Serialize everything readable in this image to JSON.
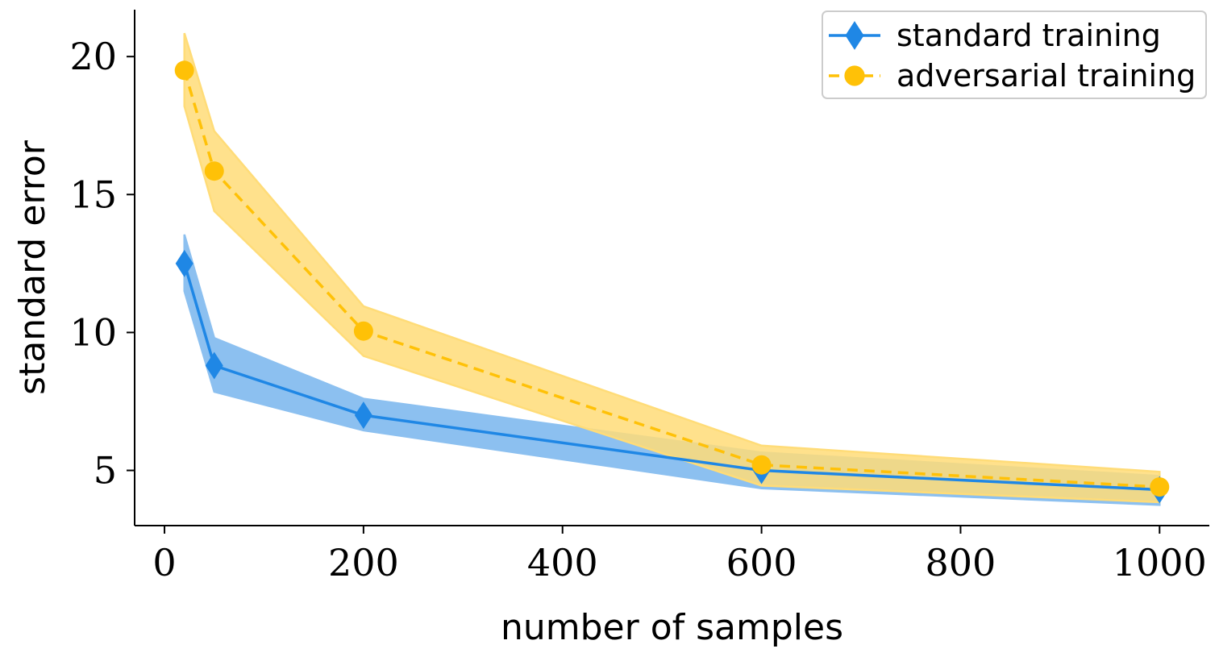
{
  "chart_data": {
    "type": "line",
    "xlabel": "number of samples",
    "ylabel": "standard error",
    "xlim": [
      -30,
      1050
    ],
    "ylim": [
      3,
      21.7
    ],
    "x_ticks": [
      0,
      200,
      400,
      600,
      800,
      1000
    ],
    "y_ticks": [
      5,
      10,
      15,
      20
    ],
    "x_tick_labels": [
      "0",
      "200",
      "400",
      "600",
      "800",
      "1000"
    ],
    "y_tick_labels": [
      "5",
      "10",
      "15",
      "20"
    ],
    "grid": false,
    "legend_position": "top-right",
    "x": [
      20,
      50,
      200,
      600,
      1000
    ],
    "series": [
      {
        "name": "standard training",
        "color": "#1f87e5",
        "fill_color": "#8cc0f0",
        "marker": "diamond",
        "linestyle": "solid",
        "values": [
          12.5,
          8.8,
          7.0,
          5.0,
          4.3
        ],
        "lower": [
          11.5,
          7.85,
          6.45,
          4.35,
          3.75
        ],
        "upper": [
          13.55,
          9.8,
          7.6,
          5.65,
          4.8
        ]
      },
      {
        "name": "adversarial training",
        "color": "#ffc107",
        "fill_color": "#ffdc78",
        "marker": "circle",
        "linestyle": "dashed",
        "values": [
          19.5,
          15.85,
          10.05,
          5.2,
          4.4
        ],
        "lower": [
          18.2,
          14.4,
          9.15,
          4.45,
          3.85
        ],
        "upper": [
          20.85,
          17.3,
          10.95,
          5.9,
          4.95
        ]
      }
    ]
  }
}
